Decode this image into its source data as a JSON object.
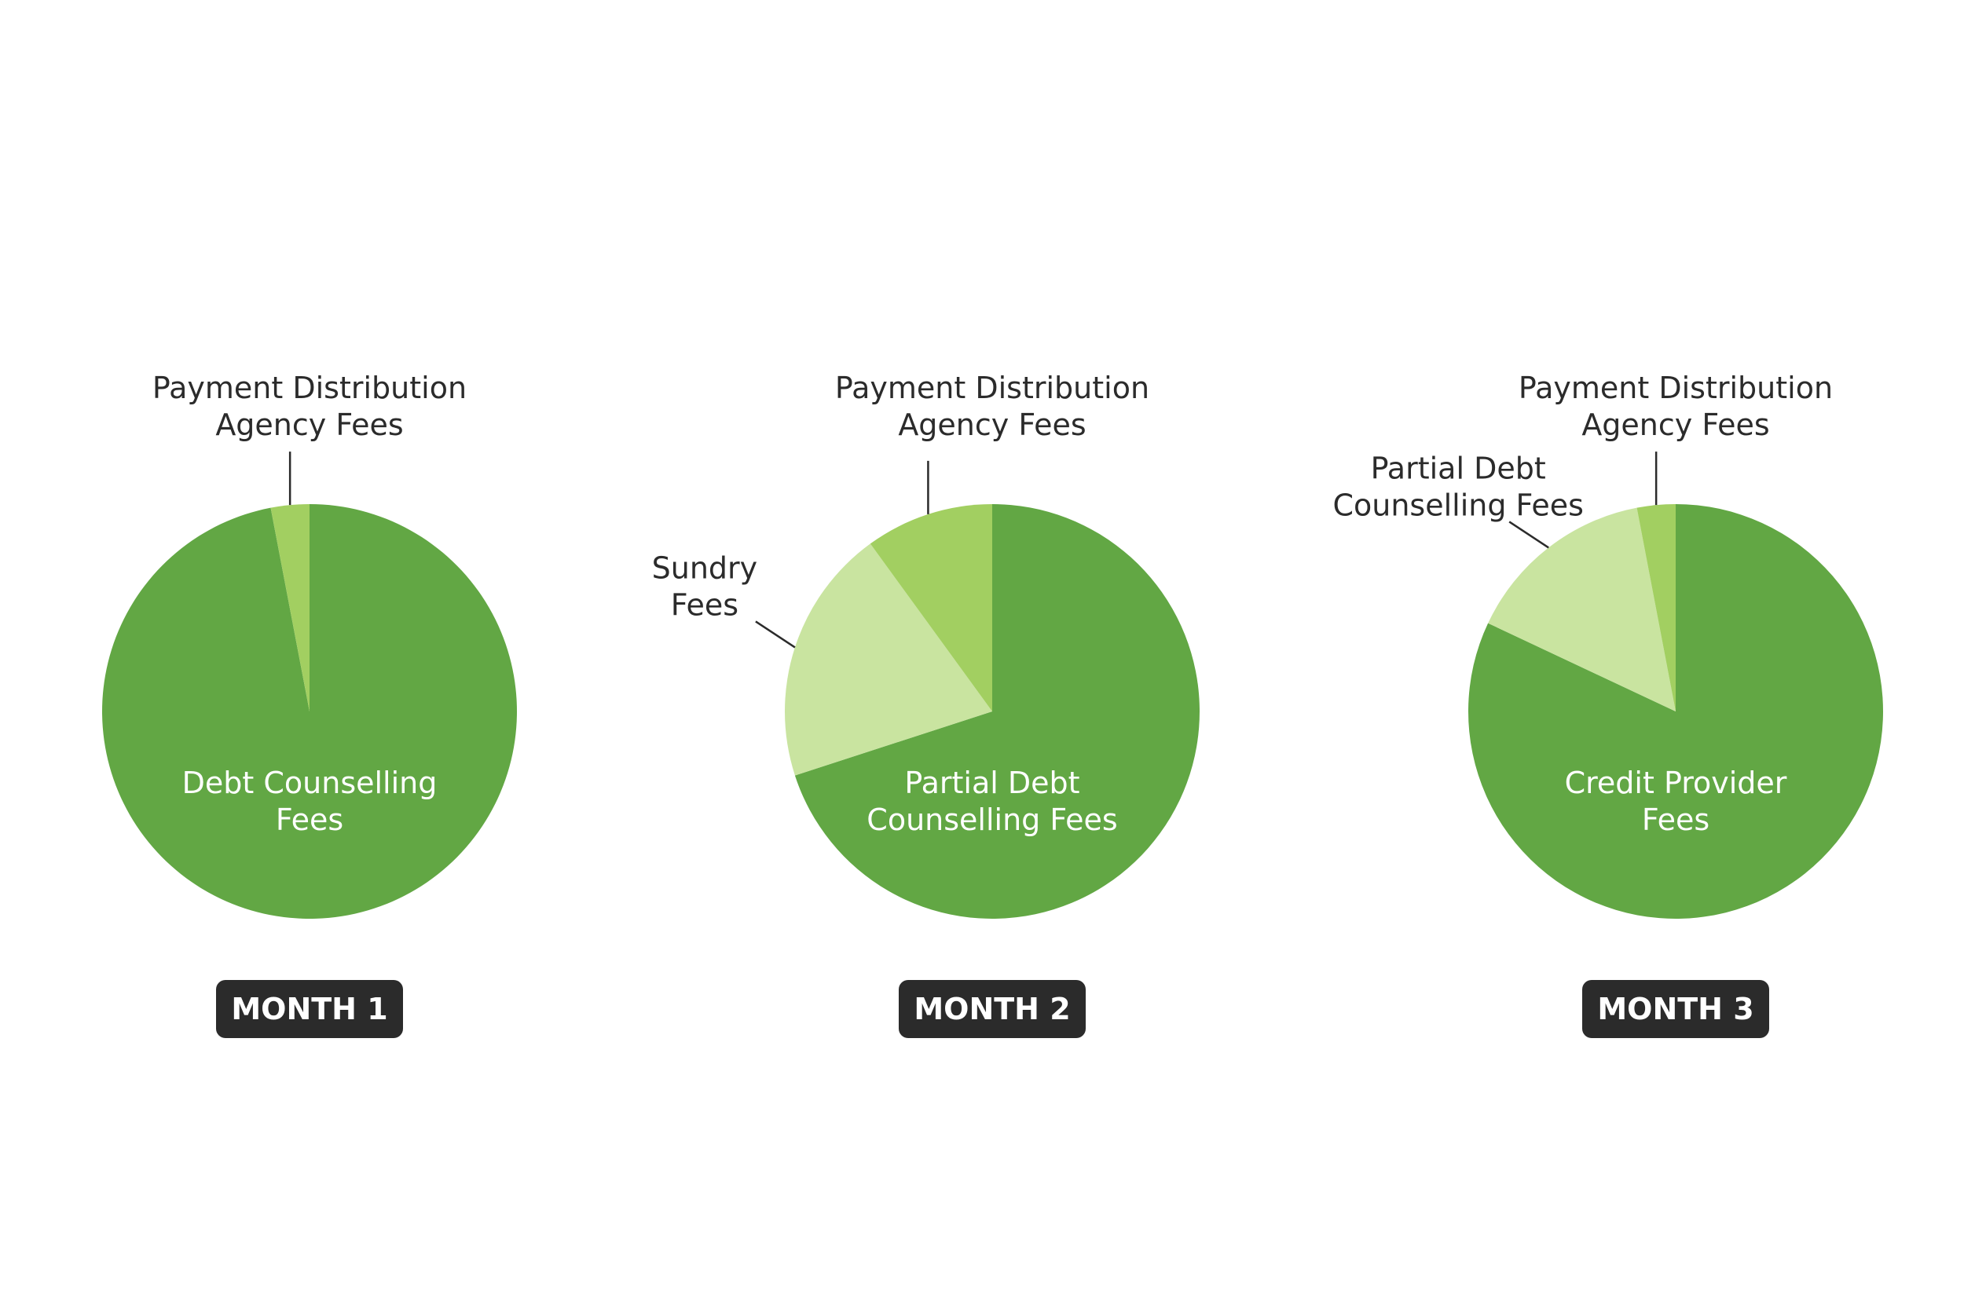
{
  "colors": {
    "badge_bg": "#2b2b2b",
    "badge_text": "#ffffff",
    "label_text": "#2b2b2b",
    "inner_label_text": "#ffffff"
  },
  "chart_data": [
    {
      "type": "pie",
      "title": "MONTH 1",
      "slices": [
        {
          "label": "Debt Counselling Fees",
          "label_lines": [
            "Debt Counselling",
            "Fees"
          ],
          "value": 97,
          "color": "#62a744",
          "placement": "inside"
        },
        {
          "label": "Payment Distribution Agency Fees",
          "label_lines": [
            "Payment Distribution",
            "Agency Fees"
          ],
          "value": 3,
          "color": "#a2cf61",
          "placement": "top"
        }
      ]
    },
    {
      "type": "pie",
      "title": "MONTH 2",
      "slices": [
        {
          "label": "Partial Debt Counselling Fees",
          "label_lines": [
            "Partial Debt",
            "Counselling Fees"
          ],
          "value": 70,
          "color": "#62a744",
          "placement": "inside"
        },
        {
          "label": "Sundry Fees",
          "label_lines": [
            "Sundry",
            "Fees"
          ],
          "value": 20,
          "color": "#c9e4a0",
          "placement": "left"
        },
        {
          "label": "Payment Distribution Agency Fees",
          "label_lines": [
            "Payment Distribution",
            "Agency Fees"
          ],
          "value": 10,
          "color": "#a2cf61",
          "placement": "top"
        }
      ]
    },
    {
      "type": "pie",
      "title": "MONTH 3",
      "slices": [
        {
          "label": "Credit Provider Fees",
          "label_lines": [
            "Credit Provider",
            "Fees"
          ],
          "value": 82,
          "color": "#62a744",
          "placement": "inside"
        },
        {
          "label": "Partial Debt Counselling Fees",
          "label_lines": [
            "Partial Debt",
            "Counselling Fees"
          ],
          "value": 15,
          "color": "#c9e4a0",
          "placement": "left"
        },
        {
          "label": "Payment Distribution Agency Fees",
          "label_lines": [
            "Payment Distribution",
            "Agency Fees"
          ],
          "value": 3,
          "color": "#a2cf61",
          "placement": "top"
        }
      ]
    }
  ]
}
